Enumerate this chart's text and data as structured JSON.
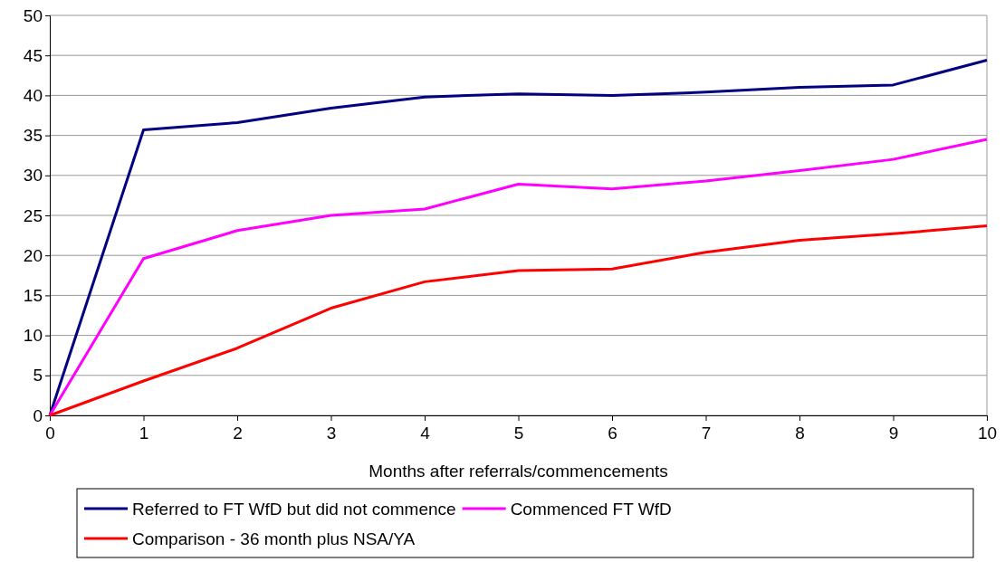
{
  "chart_data": {
    "type": "line",
    "xlabel": "Months after referrals/commencements",
    "x": [
      0,
      1,
      2,
      3,
      4,
      5,
      6,
      7,
      8,
      9,
      10
    ],
    "xlim": [
      0,
      10
    ],
    "xticks": [
      0,
      1,
      2,
      3,
      4,
      5,
      6,
      7,
      8,
      9,
      10
    ],
    "ylim": [
      0,
      50
    ],
    "yticks": [
      0,
      5,
      10,
      15,
      20,
      25,
      30,
      35,
      40,
      45,
      50
    ],
    "grid": "y",
    "legend": "bottom",
    "marker": "none",
    "line_style": "solid",
    "series": [
      {
        "name": "Referred to FT WfD but did not commence",
        "color": "#000080",
        "values": [
          0,
          35.7,
          36.6,
          38.4,
          39.8,
          40.2,
          40.0,
          40.4,
          41.0,
          41.3,
          44.4
        ]
      },
      {
        "name": "Commenced FT WfD",
        "color": "#ff00ff",
        "values": [
          0,
          19.6,
          23.1,
          25.0,
          25.8,
          28.9,
          28.3,
          29.3,
          30.6,
          32.0,
          34.5
        ]
      },
      {
        "name": "Comparison - 36 month plus NSA/YA",
        "color": "#ff0000",
        "values": [
          0,
          4.3,
          8.4,
          13.4,
          16.7,
          18.1,
          18.3,
          20.4,
          21.9,
          22.7,
          23.7
        ]
      }
    ]
  }
}
